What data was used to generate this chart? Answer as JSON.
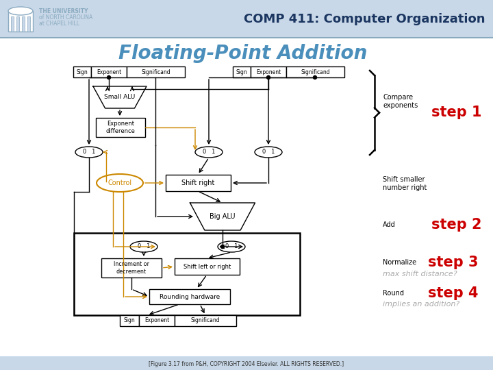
{
  "title": "Floating-Point Addition",
  "header_title": "COMP 411: Computer Organization",
  "header_sub1": "THE UNIVERSITY",
  "header_sub2": "of NORTH CAROLINA",
  "header_sub3": "at CHAPEL HILL",
  "footer_text": "[Figure 3.17 from P&H, COPYRIGHT 2004 Elsevier. ALL RIGHTS RESERVED.]",
  "step1_label": "step 1",
  "step2_label": "step 2",
  "step3_label": "step 3",
  "step4_label": "step 4",
  "compare_text": "Compare\nexponents",
  "shift_text": "Shift smaller\nnumber right",
  "add_text": "Add",
  "normalize_text": "Normalize",
  "max_shift_text": "max shift distance?",
  "round_text": "Round",
  "implies_text": "implies an addition?",
  "header_bg": "#c8d8e8",
  "header_line_color": "#8aaac0",
  "step_color": "#cc0000",
  "italic_color": "#aaaaaa",
  "title_color": "#4a8fbb",
  "comp411_color": "#1a3560",
  "orange_color": "#cc8800",
  "footer_bg": "#c8d8e8",
  "diagram_lw": 1.0,
  "thick_lw": 1.8
}
